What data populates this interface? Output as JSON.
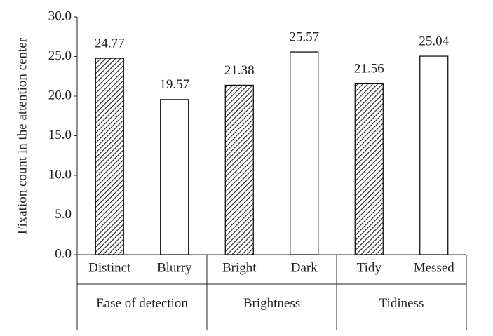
{
  "chart_data": {
    "type": "bar",
    "y_label": "Fixation  count in the attention center",
    "groups": [
      {
        "name": "Ease of detection",
        "categories": [
          "Distinct",
          "Blurry"
        ],
        "values": [
          24.77,
          19.57
        ],
        "patterns": [
          "hatched",
          "plain"
        ]
      },
      {
        "name": "Brightness",
        "categories": [
          "Bright",
          "Dark"
        ],
        "values": [
          21.38,
          25.57
        ],
        "patterns": [
          "hatched",
          "plain"
        ]
      },
      {
        "name": "Tidiness",
        "categories": [
          "Tidy",
          "Messed"
        ],
        "values": [
          21.56,
          25.04
        ],
        "patterns": [
          "hatched",
          "plain"
        ]
      }
    ],
    "ylim": [
      0,
      30
    ],
    "yticks": [
      {
        "value": 0,
        "label": "0.0"
      },
      {
        "value": 5,
        "label": "5.0"
      },
      {
        "value": 10,
        "label": "10.0"
      },
      {
        "value": 15,
        "label": "15.0"
      },
      {
        "value": 20,
        "label": "20.0"
      },
      {
        "value": 25,
        "label": "25.0"
      },
      {
        "value": 30,
        "label": "30.0"
      }
    ],
    "color": "#000000",
    "grid": false
  }
}
